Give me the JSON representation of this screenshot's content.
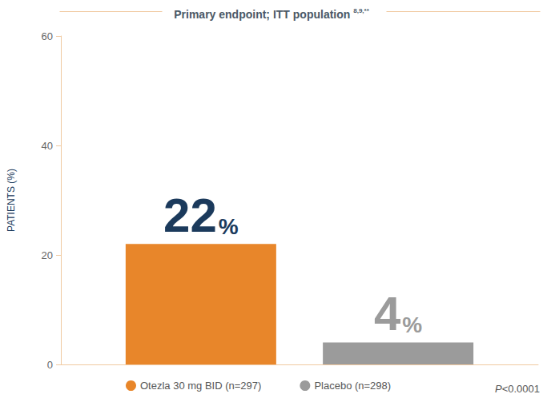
{
  "chart_data": {
    "type": "bar",
    "title": "Primary endpoint; ITT population 8,9,**",
    "categories": [
      null
    ],
    "series": [
      {
        "name": "Otezla 30 mg BID (n=297)",
        "color": "#e8862a",
        "values": [
          22
        ],
        "value_labels": [
          "22%"
        ]
      },
      {
        "name": "Placebo (n=298)",
        "color": "#9b9b9b",
        "values": [
          4
        ],
        "value_labels": [
          "4%"
        ]
      }
    ],
    "ylabel": "PATIENTS (%)",
    "ylim": [
      0,
      60
    ],
    "yticks": [
      0,
      20,
      40,
      60
    ],
    "grid": false,
    "legend": "bottom",
    "data_labels": true,
    "annotations": [
      "P<0.0001"
    ]
  }
}
